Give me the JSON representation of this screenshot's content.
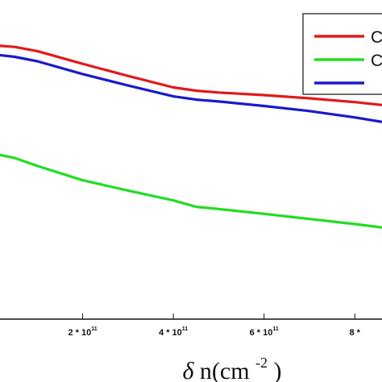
{
  "chart_data": {
    "type": "line",
    "title": "",
    "xlabel": {
      "symbol": "δ",
      "text": "n(cm",
      "exponent": "-2",
      "close": ")"
    },
    "ylabel": "",
    "xlim": [
      0,
      860000000000.0
    ],
    "ylim": [
      0,
      1
    ],
    "x_ticks": [
      {
        "value": 200000000000.0,
        "mantissa": "2",
        "mult": " * ",
        "base": "10",
        "exp": "11"
      },
      {
        "value": 400000000000.0,
        "mantissa": "4",
        "mult": " * ",
        "base": "10",
        "exp": "11"
      },
      {
        "value": 600000000000.0,
        "mantissa": "6",
        "mult": " * ",
        "base": "10",
        "exp": "11"
      },
      {
        "value": 800000000000.0,
        "mantissa": "8",
        "mult": " * ",
        "base": "",
        "exp": ""
      }
    ],
    "grid": false,
    "legend_position": "top-right",
    "series": [
      {
        "name": "C",
        "color": "#e01b1b",
        "x": [
          0,
          50000000000.0,
          100000000000.0,
          200000000000.0,
          300000000000.0,
          400000000000.0,
          450000000000.0,
          500000000000.0,
          600000000000.0,
          700000000000.0,
          800000000000.0,
          860000000000.0
        ],
        "y": [
          0.858,
          0.853,
          0.84,
          0.8,
          0.762,
          0.726,
          0.716,
          0.71,
          0.702,
          0.692,
          0.68,
          0.671
        ]
      },
      {
        "name": "C",
        "color": "#22dd22",
        "x": [
          0,
          50000000000.0,
          100000000000.0,
          200000000000.0,
          300000000000.0,
          400000000000.0,
          450000000000.0,
          500000000000.0,
          600000000000.0,
          700000000000.0,
          800000000000.0,
          860000000000.0
        ],
        "y": [
          0.52,
          0.505,
          0.48,
          0.435,
          0.403,
          0.372,
          0.352,
          0.345,
          0.33,
          0.314,
          0.298,
          0.287
        ]
      },
      {
        "name": "",
        "color": "#1a1acc",
        "x": [
          0,
          50000000000.0,
          100000000000.0,
          200000000000.0,
          300000000000.0,
          400000000000.0,
          450000000000.0,
          500000000000.0,
          600000000000.0,
          700000000000.0,
          800000000000.0,
          860000000000.0
        ],
        "y": [
          0.83,
          0.822,
          0.808,
          0.768,
          0.732,
          0.698,
          0.688,
          0.682,
          0.668,
          0.652,
          0.632,
          0.618
        ]
      }
    ]
  }
}
